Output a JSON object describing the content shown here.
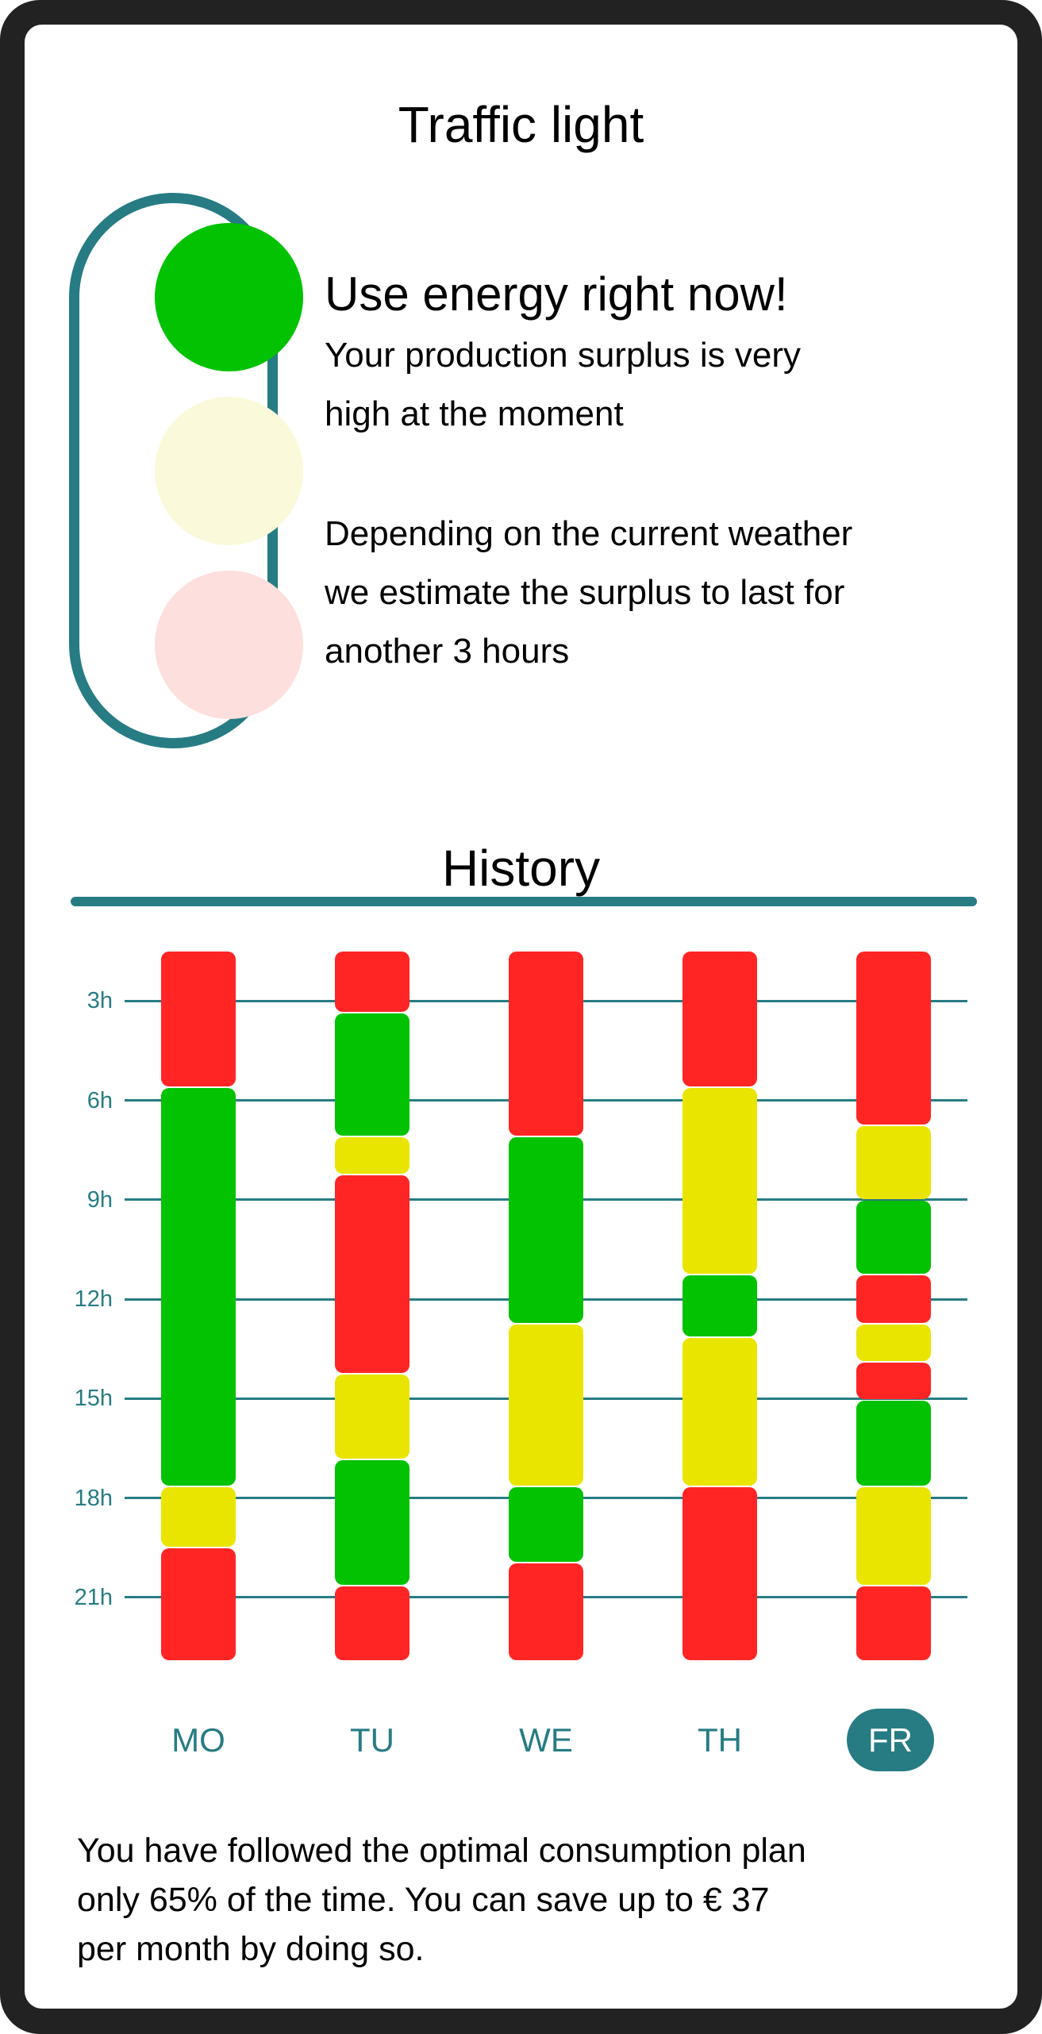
{
  "traffic_light": {
    "title": "Traffic light",
    "active_state": "green",
    "lamps": [
      {
        "name": "green",
        "color": "#02c202",
        "on": true
      },
      {
        "name": "yellow",
        "color": "#fafadb",
        "on": false
      },
      {
        "name": "red",
        "color": "#fddfdd",
        "on": false
      }
    ],
    "housing_color": "#277c83",
    "headline": "Use energy right now!",
    "message_line1": "Your production surplus is very",
    "message_line2": "high at the moment",
    "estimate_line1": "Depending on the current weather",
    "estimate_line2": "we estimate the surplus to last for",
    "estimate_line3": "another 3 hours"
  },
  "history": {
    "title": "History",
    "selected_day": "FR",
    "summary_line1": "You have followed the optimal consumption plan",
    "summary_line2": "only 65% of the time. You can save up to € 37",
    "summary_line3": "per month by doing so."
  },
  "colors": {
    "accent": "#277c83",
    "red": "#ff2525",
    "green": "#02c202",
    "yellow": "#e9e500",
    "frame": "#222222"
  },
  "chart_data": {
    "type": "bar",
    "subtype": "stacked-timeline",
    "title": "History",
    "categories": [
      "MO",
      "TU",
      "WE",
      "TH",
      "FR"
    ],
    "xlabel": "",
    "ylabel": "",
    "y_ticks": [
      "3h",
      "6h",
      "9h",
      "12h",
      "15h",
      "18h",
      "21h"
    ],
    "y_tick_values": [
      3,
      6,
      9,
      12,
      15,
      18,
      21
    ],
    "ylim": [
      1.5,
      22.9
    ],
    "y_inverted": true,
    "grid": true,
    "legend": [
      {
        "label": "red",
        "color": "#ff2525"
      },
      {
        "label": "yellow",
        "color": "#e9e500"
      },
      {
        "label": "green",
        "color": "#02c202"
      }
    ],
    "series": [
      {
        "name": "MO",
        "segments": [
          {
            "state": "red",
            "start": 1.5,
            "end": 5.6
          },
          {
            "state": "green",
            "start": 5.6,
            "end": 17.65
          },
          {
            "state": "yellow",
            "start": 17.65,
            "end": 19.5
          },
          {
            "state": "red",
            "start": 19.5,
            "end": 22.9
          }
        ]
      },
      {
        "name": "TU",
        "segments": [
          {
            "state": "red",
            "start": 1.5,
            "end": 3.35
          },
          {
            "state": "green",
            "start": 3.35,
            "end": 7.1
          },
          {
            "state": "yellow",
            "start": 7.1,
            "end": 8.25
          },
          {
            "state": "red",
            "start": 8.25,
            "end": 14.25
          },
          {
            "state": "yellow",
            "start": 14.25,
            "end": 16.85
          },
          {
            "state": "green",
            "start": 16.85,
            "end": 20.65
          },
          {
            "state": "red",
            "start": 20.65,
            "end": 22.9
          }
        ]
      },
      {
        "name": "WE",
        "segments": [
          {
            "state": "red",
            "start": 1.5,
            "end": 7.1
          },
          {
            "state": "green",
            "start": 7.1,
            "end": 12.75
          },
          {
            "state": "yellow",
            "start": 12.75,
            "end": 17.65
          },
          {
            "state": "green",
            "start": 17.65,
            "end": 19.95
          },
          {
            "state": "red",
            "start": 19.95,
            "end": 22.9
          }
        ]
      },
      {
        "name": "TH",
        "segments": [
          {
            "state": "red",
            "start": 1.5,
            "end": 5.6
          },
          {
            "state": "yellow",
            "start": 5.6,
            "end": 11.25
          },
          {
            "state": "green",
            "start": 11.25,
            "end": 13.15
          },
          {
            "state": "yellow",
            "start": 13.15,
            "end": 17.65
          },
          {
            "state": "red",
            "start": 17.65,
            "end": 22.9
          }
        ]
      },
      {
        "name": "FR",
        "segments": [
          {
            "state": "red",
            "start": 1.5,
            "end": 6.75
          },
          {
            "state": "yellow",
            "start": 6.75,
            "end": 9.0
          },
          {
            "state": "green",
            "start": 9.0,
            "end": 11.25
          },
          {
            "state": "red",
            "start": 11.25,
            "end": 12.75
          },
          {
            "state": "yellow",
            "start": 12.75,
            "end": 13.9
          },
          {
            "state": "red",
            "start": 13.9,
            "end": 15.05
          },
          {
            "state": "green",
            "start": 15.05,
            "end": 17.65
          },
          {
            "state": "yellow",
            "start": 17.65,
            "end": 20.65
          },
          {
            "state": "red",
            "start": 20.65,
            "end": 22.9
          }
        ]
      }
    ]
  }
}
